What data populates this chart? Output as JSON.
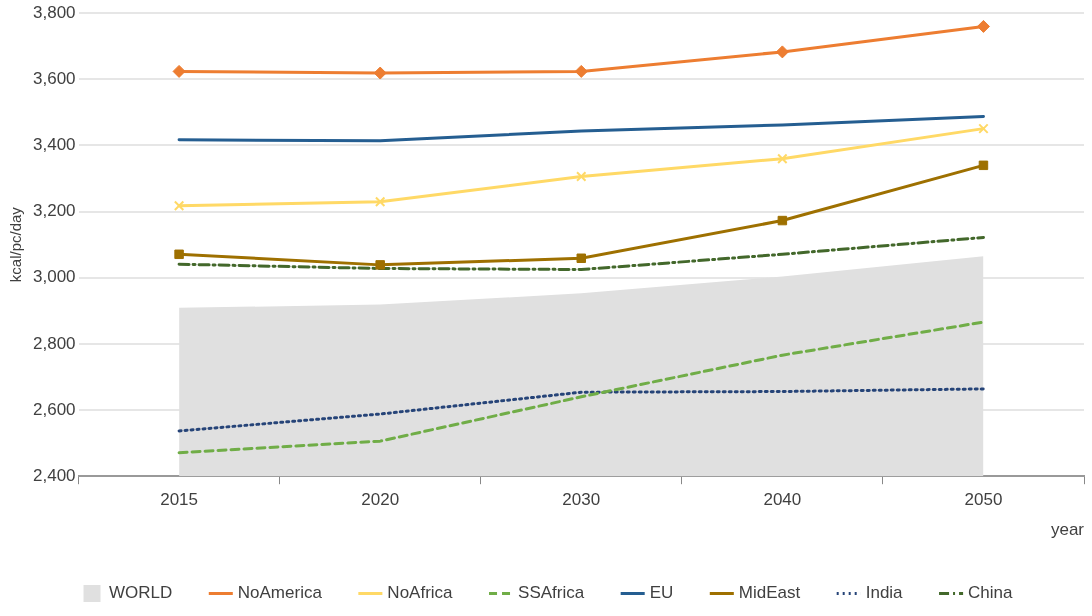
{
  "chart_data": {
    "type": "line",
    "ylabel": "kcal/pc/day",
    "xlabel": "year",
    "categories": [
      "2015",
      "2020",
      "2030",
      "2040",
      "2050"
    ],
    "ylim": [
      2400,
      3800
    ],
    "yticks": [
      {
        "value": 2400,
        "label": "2,400"
      },
      {
        "value": 2600,
        "label": "2,600"
      },
      {
        "value": 2800,
        "label": "2,800"
      },
      {
        "value": 3000,
        "label": "3,000"
      },
      {
        "value": 3200,
        "label": "3,200"
      },
      {
        "value": 3400,
        "label": "3,400"
      },
      {
        "value": 3600,
        "label": "3,600"
      },
      {
        "value": 3800,
        "label": "3,800"
      }
    ],
    "grid": "y",
    "legend": "bottom",
    "series": [
      {
        "name": "WORLD",
        "type": "area",
        "color": "#e0e0e0",
        "values": [
          2909,
          2919,
          2953,
          3004,
          3065
        ]
      },
      {
        "name": "NoAmerica",
        "color": "#ed7d31",
        "marker": "diamond",
        "line_style": "solid",
        "values": [
          3624,
          3619,
          3624,
          3683,
          3760
        ]
      },
      {
        "name": "NoAfrica",
        "color": "#ffd966",
        "marker": "cross",
        "line_style": "solid",
        "values": [
          3218,
          3230,
          3306,
          3360,
          3451
        ]
      },
      {
        "name": "SSAfrica",
        "color": "#70ad47",
        "marker": "none",
        "line_style": "dashed",
        "values": [
          2471,
          2506,
          2640,
          2766,
          2866
        ]
      },
      {
        "name": "EU",
        "color": "#255e91",
        "marker": "none",
        "line_style": "solid",
        "values": [
          3417,
          3414,
          3444,
          3462,
          3488
        ]
      },
      {
        "name": "MidEast",
        "color": "#9e7000",
        "marker": "square",
        "line_style": "solid",
        "values": [
          3071,
          3039,
          3059,
          3173,
          3340
        ]
      },
      {
        "name": "India",
        "color": "#264478",
        "marker": "none",
        "line_style": "dotted",
        "values": [
          2537,
          2588,
          2654,
          2656,
          2664
        ]
      },
      {
        "name": "China",
        "color": "#43682b",
        "marker": "none",
        "line_style": "dashdot",
        "values": [
          3041,
          3028,
          3025,
          3071,
          3122
        ]
      }
    ]
  }
}
